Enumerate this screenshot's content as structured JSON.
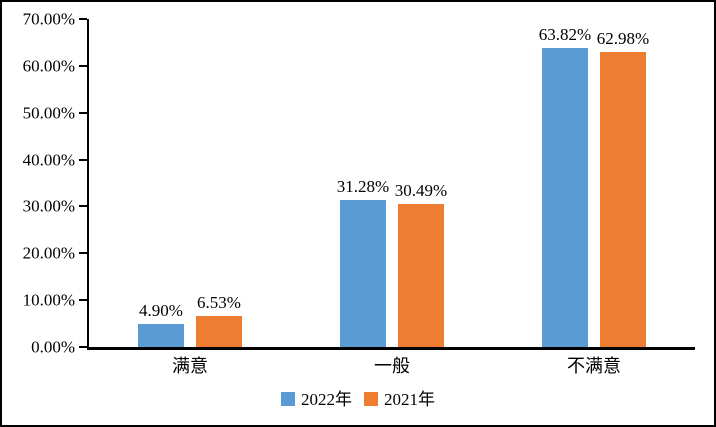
{
  "chart_data": {
    "type": "bar",
    "title": "",
    "categories": [
      "满意",
      "一般",
      "不满意"
    ],
    "series": [
      {
        "name": "2022年",
        "color": "#5B9BD5",
        "values": [
          4.9,
          31.28,
          63.82
        ],
        "value_labels": [
          "4.90%",
          "31.28%",
          "63.82%"
        ]
      },
      {
        "name": "2021年",
        "color": "#ED7D31",
        "values": [
          6.53,
          30.49,
          62.98
        ],
        "value_labels": [
          "6.53%",
          "30.49%",
          "62.98%"
        ]
      }
    ],
    "ylim": [
      0,
      70
    ],
    "yticks": [
      {
        "value": 0,
        "label": "0.00%"
      },
      {
        "value": 10,
        "label": "10.00%"
      },
      {
        "value": 20,
        "label": "20.00%"
      },
      {
        "value": 30,
        "label": "30.00%"
      },
      {
        "value": 40,
        "label": "40.00%"
      },
      {
        "value": 50,
        "label": "50.00%"
      },
      {
        "value": 60,
        "label": "60.00%"
      },
      {
        "value": 70,
        "label": "70.00%"
      }
    ],
    "grid": false,
    "legend_position": "bottom",
    "axis_color": "#000000",
    "background": "#FFFFFF"
  }
}
